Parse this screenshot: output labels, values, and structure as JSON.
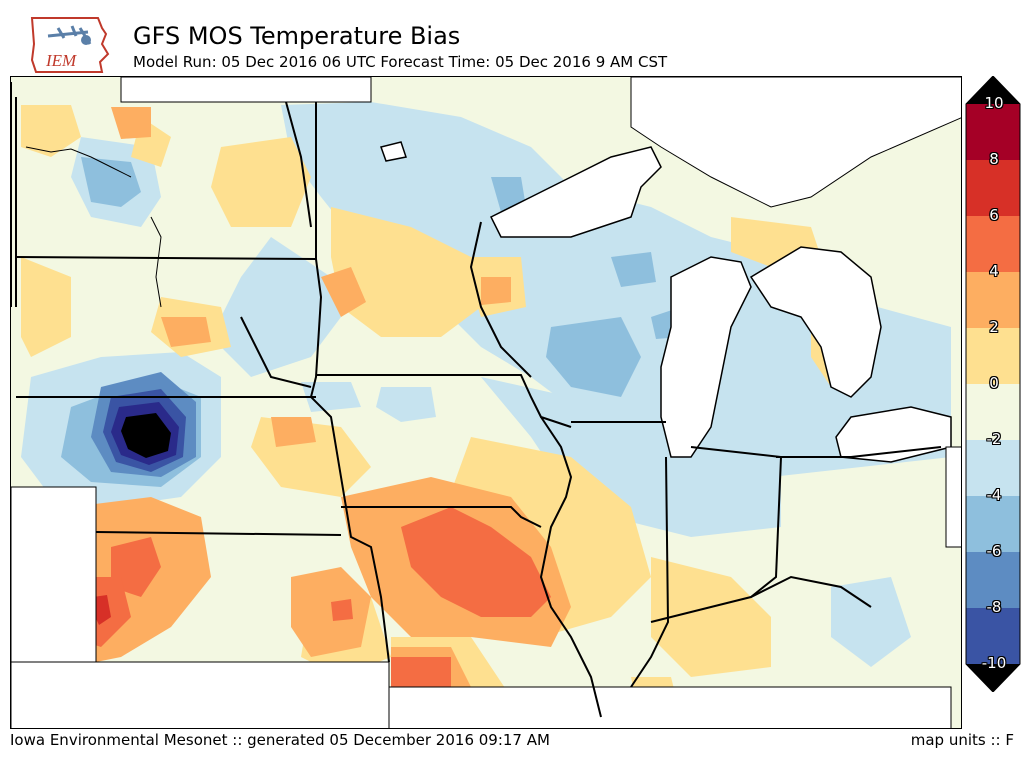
{
  "header": {
    "logo_text": "IEM",
    "title": "GFS MOS Temperature Bias",
    "subtitle": "Model Run: 05 Dec 2016 06 UTC Forecast Time: 05 Dec 2016 9 AM CST"
  },
  "colorbar": {
    "labels": [
      "10",
      "8",
      "6",
      "4",
      "2",
      "0",
      "-2",
      "-4",
      "-6",
      "-8",
      "-10"
    ],
    "colors": [
      "#a50026",
      "#d73027",
      "#f46d43",
      "#fdae61",
      "#fee090",
      "#f3f8e2",
      "#c6e3ef",
      "#8ebfdd",
      "#5d8cc2",
      "#3a54a4",
      "#2a2a8a"
    ],
    "over_color": "#000000",
    "under_color": "#000000"
  },
  "footer": {
    "left": "Iowa Environmental Mesonet :: generated 05 December 2016 09:17 AM",
    "right": "map units :: F"
  }
}
